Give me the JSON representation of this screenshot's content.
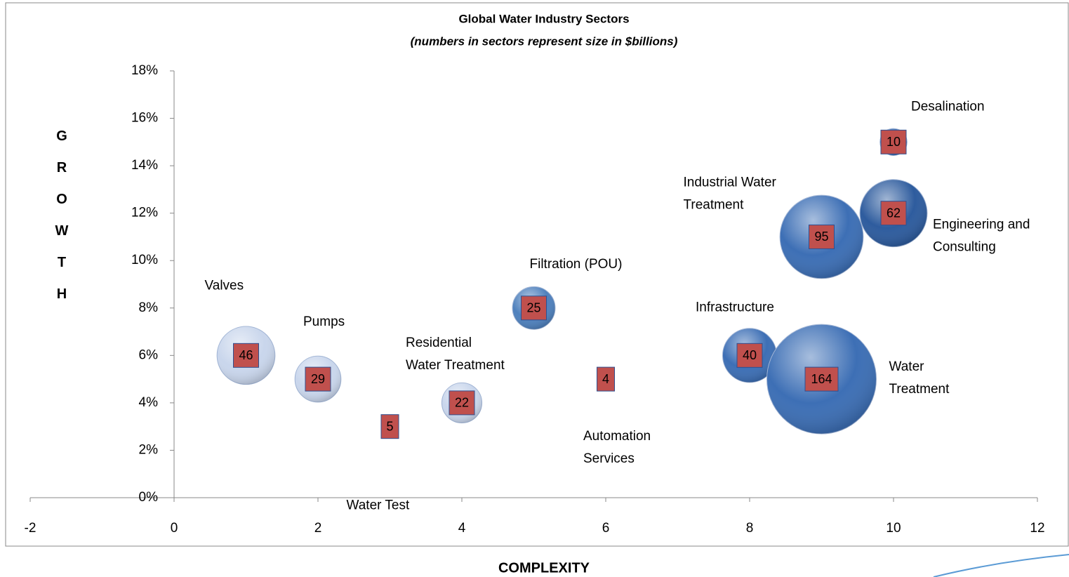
{
  "chart_data": {
    "type": "bubble",
    "title": "Global Water Industry Sectors",
    "subtitle": "(numbers in sectors represent size in $billions)",
    "x_label": "COMPLEXITY",
    "y_label": "GROWTH",
    "x": [
      1,
      2,
      3,
      4,
      5,
      6,
      8,
      9,
      9,
      10,
      10
    ],
    "values": [
      6,
      5,
      3,
      4,
      8,
      5,
      6,
      5,
      11,
      12,
      15
    ],
    "sizes": [
      46,
      29,
      5,
      22,
      25,
      4,
      40,
      164,
      95,
      62,
      10
    ],
    "point_names": [
      "Valves",
      "Pumps",
      "Water Test",
      "Residential Water Treatment",
      "Filtration (POU)",
      "Automation Services",
      "Infrastructure",
      "Water Treatment",
      "Industrial Water Treatment",
      "Engineering and Consulting",
      "Desalination"
    ],
    "point_colors": [
      "#c9d6ec",
      "#c9d6ec",
      "#c9d6ec",
      "#c9d6ec",
      "#4f81bd",
      "#c9d6ec",
      "#3d6fb5",
      "#3d6fb5",
      "#3d6fb5",
      "#2e5c9e",
      "#3d6fb5"
    ],
    "label_box_color": "#c0504d",
    "xlim": [
      -2,
      12
    ],
    "xticks": [
      -2,
      0,
      2,
      4,
      6,
      8,
      10,
      12
    ],
    "ylim": [
      0,
      18
    ],
    "yticks": [
      {
        "value": 0,
        "label": "0%"
      },
      {
        "value": 2,
        "label": "2%"
      },
      {
        "value": 4,
        "label": "4%"
      },
      {
        "value": 6,
        "label": "6%"
      },
      {
        "value": 8,
        "label": "8%"
      },
      {
        "value": 10,
        "label": "10%"
      },
      {
        "value": 12,
        "label": "12%"
      },
      {
        "value": 14,
        "label": "14%"
      },
      {
        "value": 16,
        "label": "16%"
      },
      {
        "value": 18,
        "label": "18%"
      }
    ]
  }
}
